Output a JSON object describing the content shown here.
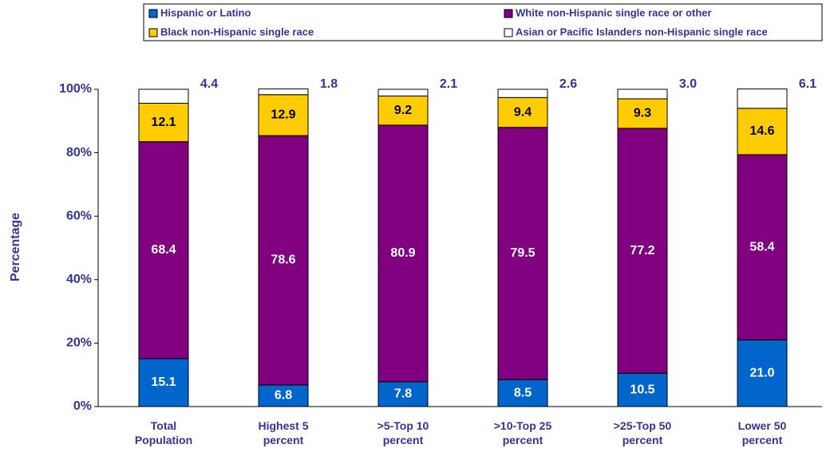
{
  "chart_data": {
    "type": "stacked_bar",
    "y_label": "Percentage",
    "categories": [
      [
        "Total",
        "Population"
      ],
      [
        "Highest 5",
        "percent"
      ],
      [
        ">5-Top 10",
        "percent"
      ],
      [
        ">10-Top 25",
        "percent"
      ],
      [
        ">25-Top 50",
        "percent"
      ],
      [
        "Lower 50",
        "percent"
      ]
    ],
    "series": [
      {
        "name": "Hispanic or Latino",
        "color": "#0066cc",
        "values": [
          15.1,
          6.8,
          7.8,
          8.5,
          10.5,
          21.0
        ],
        "value_labels": [
          "15.1",
          "6.8",
          "7.8",
          "8.5",
          "10.5",
          "21.0"
        ]
      },
      {
        "name": "White non-Hispanic single race or other",
        "color": "#800080",
        "values": [
          68.4,
          78.6,
          80.9,
          79.5,
          77.2,
          58.4
        ],
        "value_labels": [
          "68.4",
          "78.6",
          "80.9",
          "79.5",
          "77.2",
          "58.4"
        ]
      },
      {
        "name": "Black non-Hispanic single race",
        "color": "#ffcc00",
        "values": [
          12.1,
          12.9,
          9.2,
          9.4,
          9.3,
          14.6
        ],
        "value_labels": [
          "12.1",
          "12.9",
          "9.2",
          "9.4",
          "9.3",
          "14.6"
        ]
      },
      {
        "name": "Asian or Pacific Islanders non-Hispanic single race",
        "color": "#ffffff",
        "values": [
          4.4,
          1.8,
          2.1,
          2.6,
          3.0,
          6.1
        ],
        "value_labels": [
          "4.4",
          "1.8",
          "2.1",
          "2.6",
          "3.0",
          "6.1"
        ]
      }
    ],
    "ylim": [
      0,
      100
    ],
    "yticks": [
      {
        "value": 0,
        "label": "0%"
      },
      {
        "value": 20,
        "label": "20%"
      },
      {
        "value": 40,
        "label": "40%"
      },
      {
        "value": 60,
        "label": "60%"
      },
      {
        "value": 80,
        "label": "80%"
      },
      {
        "value": 100,
        "label": "100%"
      }
    ],
    "legend": "top"
  }
}
